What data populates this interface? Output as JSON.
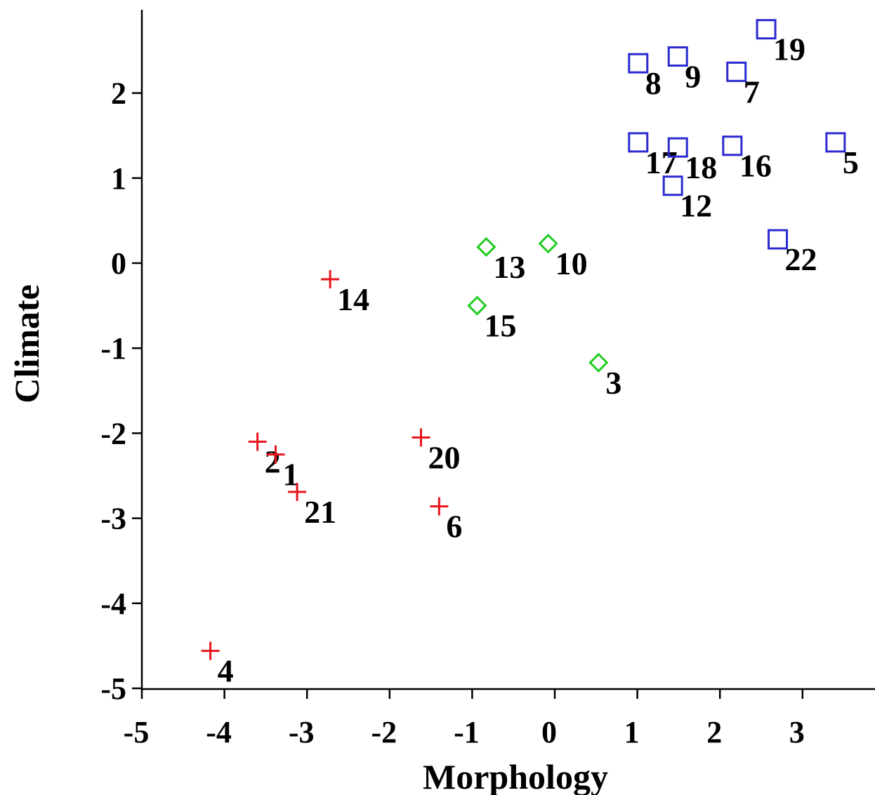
{
  "chart_data": {
    "type": "scatter",
    "xlabel": "Morphology",
    "ylabel": "Climate",
    "xlim": [
      -5,
      3.8
    ],
    "ylim": [
      -5,
      3
    ],
    "xticks": [
      -5,
      -4,
      -3,
      -2,
      -1,
      0,
      1,
      2,
      3
    ],
    "yticks": [
      -5,
      -4,
      -3,
      -2,
      -1,
      0,
      1,
      2
    ],
    "grid": false,
    "series": [
      {
        "marker": "plus",
        "color": "#e8141c",
        "points": [
          {
            "label": "14",
            "x": -2.72,
            "y": -0.19
          },
          {
            "label": "2",
            "x": -3.6,
            "y": -2.1
          },
          {
            "label": "1",
            "x": -3.38,
            "y": -2.25
          },
          {
            "label": "21",
            "x": -3.12,
            "y": -2.69
          },
          {
            "label": "20",
            "x": -1.62,
            "y": -2.05
          },
          {
            "label": "6",
            "x": -1.4,
            "y": -2.86
          },
          {
            "label": "4",
            "x": -4.17,
            "y": -4.56
          }
        ]
      },
      {
        "marker": "diamond",
        "color": "#22cc22",
        "points": [
          {
            "label": "13",
            "x": -0.83,
            "y": 0.19
          },
          {
            "label": "10",
            "x": -0.08,
            "y": 0.23
          },
          {
            "label": "15",
            "x": -0.94,
            "y": -0.5
          },
          {
            "label": "3",
            "x": 0.53,
            "y": -1.17
          }
        ]
      },
      {
        "marker": "square",
        "color": "#2a2acf",
        "points": [
          {
            "label": "19",
            "x": 2.56,
            "y": 2.75
          },
          {
            "label": "8",
            "x": 1.01,
            "y": 2.35
          },
          {
            "label": "9",
            "x": 1.49,
            "y": 2.43
          },
          {
            "label": "7",
            "x": 2.2,
            "y": 2.25
          },
          {
            "label": "17",
            "x": 1.01,
            "y": 1.42
          },
          {
            "label": "18",
            "x": 1.49,
            "y": 1.36
          },
          {
            "label": "16",
            "x": 2.15,
            "y": 1.38
          },
          {
            "label": "5",
            "x": 3.4,
            "y": 1.42
          },
          {
            "label": "12",
            "x": 1.43,
            "y": 0.91
          },
          {
            "label": "22",
            "x": 2.7,
            "y": 0.28
          }
        ]
      }
    ]
  }
}
